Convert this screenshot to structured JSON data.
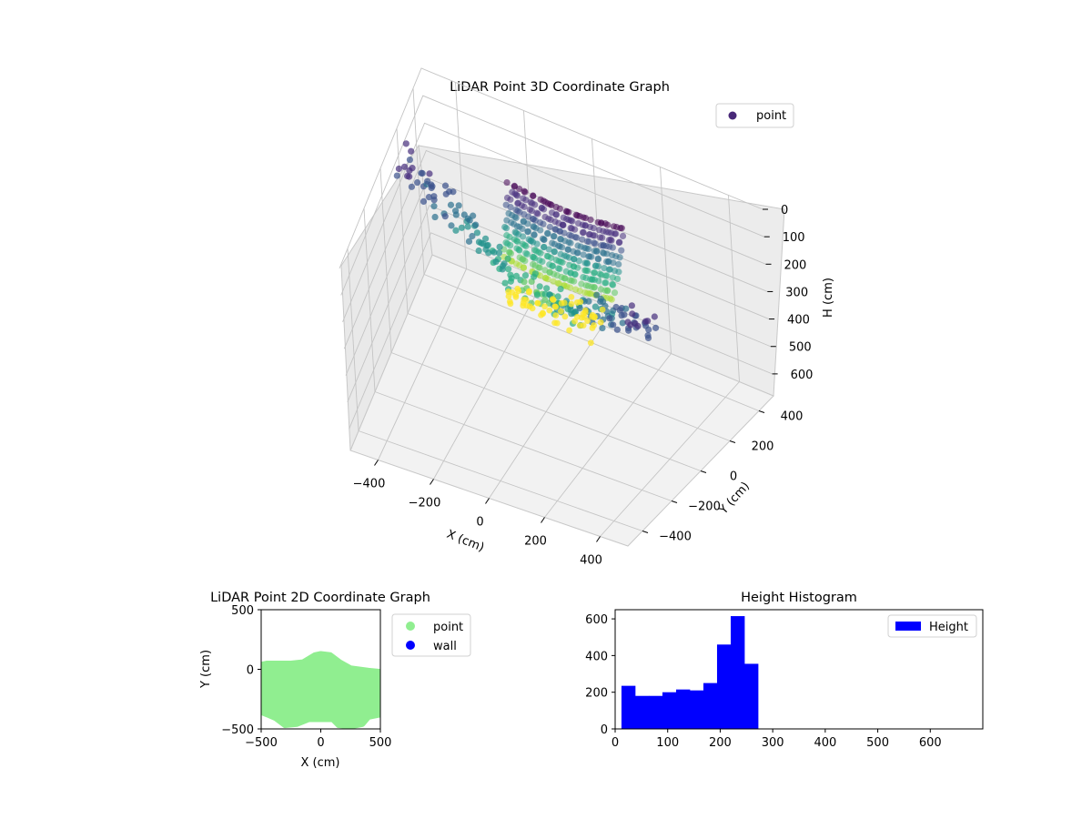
{
  "chart_data": [
    {
      "type": "scatter",
      "projection": "3d",
      "title": "LiDAR Point 3D Coordinate Graph",
      "xlabel": "X (cm)",
      "ylabel": "Y (cm)",
      "zlabel": "H (cm)",
      "xlim": [
        -500,
        500
      ],
      "ylim": [
        -500,
        500
      ],
      "zlim": [
        0,
        680
      ],
      "z_inverted": true,
      "xticks": [
        "−400",
        "−200",
        "0",
        "200",
        "400"
      ],
      "yticks": [
        "−400",
        "−200",
        "0",
        "200",
        "400"
      ],
      "zticks": [
        "0",
        "100",
        "200",
        "300",
        "400",
        "500",
        "600"
      ],
      "colormap": "viridis",
      "grid": true,
      "legend": {
        "placement": "top-right",
        "entries": [
          {
            "label": "point",
            "color": "#482878"
          }
        ]
      },
      "series": [
        {
          "name": "point",
          "description_points": [
            {
              "x": -450,
              "y": 250,
              "h": 20
            },
            {
              "x": -380,
              "y": 200,
              "h": 50
            },
            {
              "x": -300,
              "y": 120,
              "h": 100
            },
            {
              "x": -200,
              "y": 50,
              "h": 150
            },
            {
              "x": -100,
              "y": 0,
              "h": 200
            },
            {
              "x": 0,
              "y": -30,
              "h": 220
            },
            {
              "x": 100,
              "y": -60,
              "h": 210
            },
            {
              "x": 200,
              "y": -100,
              "h": 150
            },
            {
              "x": 300,
              "y": -150,
              "h": 80
            },
            {
              "x": 400,
              "y": -200,
              "h": 20
            }
          ]
        }
      ]
    },
    {
      "type": "scatter",
      "title": "LiDAR Point 2D Coordinate Graph",
      "xlabel": "X (cm)",
      "ylabel": "Y (cm)",
      "xlim": [
        -500,
        500
      ],
      "ylim": [
        -500,
        500
      ],
      "xticks": [
        "−500",
        "0",
        "500"
      ],
      "yticks": [
        "500",
        "0",
        "−500"
      ],
      "legend": {
        "placement": "outside-right",
        "entries": [
          {
            "label": "point",
            "color": "#90ee90"
          },
          {
            "label": "wall",
            "color": "#0000ff"
          }
        ]
      },
      "series": [
        {
          "name": "point",
          "color": "#90ee90",
          "outline": [
            [
              -500,
              40
            ],
            [
              -450,
              50
            ],
            [
              -250,
              50
            ],
            [
              -150,
              60
            ],
            [
              -50,
              120
            ],
            [
              0,
              130
            ],
            [
              80,
              120
            ],
            [
              160,
              60
            ],
            [
              250,
              10
            ],
            [
              400,
              -10
            ],
            [
              500,
              -20
            ],
            [
              500,
              -380
            ],
            [
              400,
              -400
            ],
            [
              350,
              -460
            ],
            [
              250,
              -480
            ],
            [
              150,
              -470
            ],
            [
              100,
              -420
            ],
            [
              0,
              -420
            ],
            [
              -100,
              -420
            ],
            [
              -200,
              -460
            ],
            [
              -300,
              -470
            ],
            [
              -380,
              -410
            ],
            [
              -450,
              -380
            ],
            [
              -500,
              -360
            ]
          ]
        },
        {
          "name": "wall",
          "color": "#0000ff",
          "values": []
        }
      ]
    },
    {
      "type": "bar",
      "subtype": "histogram",
      "title": "Height Histogram",
      "xlim": [
        0,
        700
      ],
      "ylim": [
        0,
        650
      ],
      "xticks": [
        "0",
        "100",
        "200",
        "300",
        "400",
        "500",
        "600"
      ],
      "yticks": [
        "0",
        "200",
        "400",
        "600"
      ],
      "legend": {
        "placement": "top-right",
        "entries": [
          {
            "label": "Height",
            "color": "#0000ff"
          }
        ]
      },
      "series": [
        {
          "name": "Height",
          "color": "#0000ff",
          "bin_edges": [
            12,
            38,
            64,
            90,
            116,
            142,
            168,
            194,
            220,
            246,
            272
          ],
          "counts": [
            235,
            180,
            180,
            200,
            215,
            210,
            250,
            460,
            615,
            355
          ]
        }
      ]
    }
  ]
}
